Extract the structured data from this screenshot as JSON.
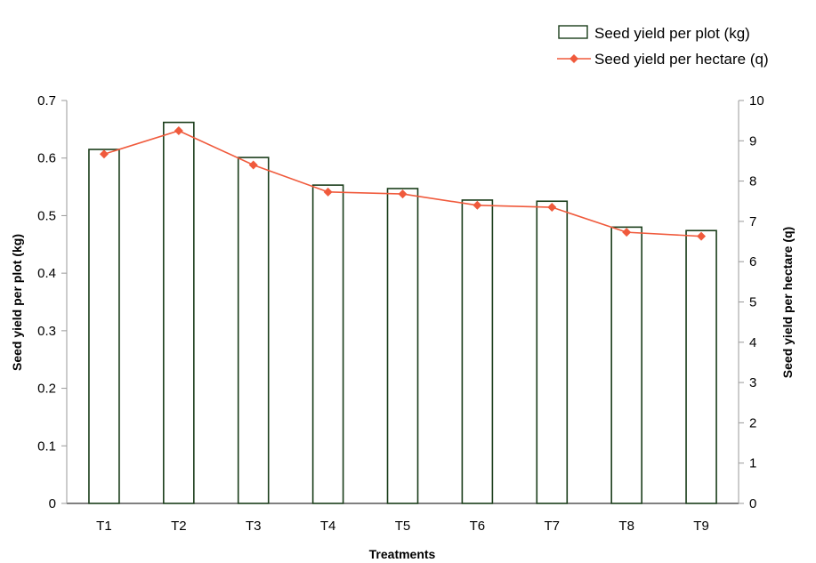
{
  "chart_data": {
    "type": "bar",
    "xlabel": "Treatments",
    "ylabel": "Seed yield per plot (kg)",
    "y2label": "Seed yield per hectare (q)",
    "categories": [
      "T1",
      "T2",
      "T3",
      "T4",
      "T5",
      "T6",
      "T7",
      "T8",
      "T9"
    ],
    "ylim": [
      0,
      0.7
    ],
    "y2lim": [
      0,
      10
    ],
    "yticks": [
      "0",
      "0.1",
      "0.2",
      "0.3",
      "0.4",
      "0.5",
      "0.6",
      "0.7"
    ],
    "y2ticks": [
      "0",
      "1",
      "2",
      "3",
      "4",
      "5",
      "6",
      "7",
      "8",
      "9",
      "10"
    ],
    "grid": false,
    "legend_position": "top-right",
    "series": [
      {
        "name": "Seed yield per plot (kg)",
        "type": "bar",
        "axis": "left",
        "values": [
          0.615,
          0.662,
          0.601,
          0.553,
          0.547,
          0.527,
          0.525,
          0.48,
          0.474
        ],
        "color": "#1a3d1a"
      },
      {
        "name": "Seed yield per hectare (q)",
        "type": "line",
        "axis": "right",
        "values": [
          8.67,
          9.25,
          8.4,
          7.73,
          7.68,
          7.4,
          7.35,
          6.73,
          6.63
        ],
        "color": "#f05a3c",
        "marker": "diamond"
      }
    ]
  }
}
